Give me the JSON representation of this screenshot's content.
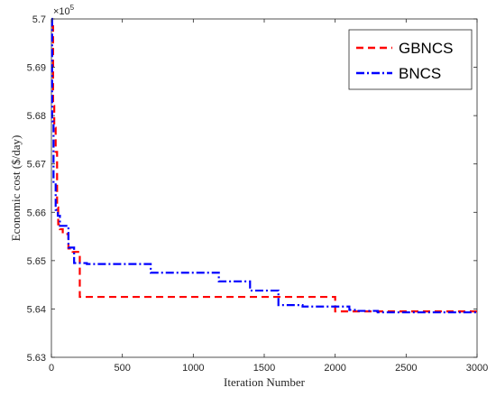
{
  "chart_data": {
    "type": "line",
    "xlabel": "Iteration Number",
    "ylabel": "Economic cost ($/day)",
    "y_multiplier": "×10",
    "y_multiplier_exp": "5",
    "xlim": [
      0,
      3000
    ],
    "ylim": [
      5.63,
      5.7
    ],
    "x_ticks": [
      0,
      500,
      1000,
      1500,
      2000,
      2500,
      3000
    ],
    "x_tick_labels": [
      "0",
      "500",
      "1000",
      "1500",
      "2000",
      "2500",
      "3000"
    ],
    "y_ticks": [
      5.63,
      5.64,
      5.65,
      5.66,
      5.67,
      5.68,
      5.69,
      5.7
    ],
    "y_tick_labels": [
      "5.63",
      "5.64",
      "5.65",
      "5.66",
      "5.67",
      "5.68",
      "5.69",
      "5.7"
    ],
    "grid": false,
    "legend_position": "top-right",
    "series": [
      {
        "name": "GBNCS",
        "color": "#ff0000",
        "style": "dashed",
        "x": [
          0,
          12,
          12,
          20,
          20,
          30,
          30,
          40,
          40,
          48,
          48,
          60,
          60,
          80,
          80,
          120,
          120,
          150,
          150,
          200,
          200,
          2000,
          2000,
          3000
        ],
        "y": [
          5.6985,
          5.6985,
          5.682,
          5.682,
          5.6775,
          5.6775,
          5.6725,
          5.6725,
          5.661,
          5.661,
          5.6575,
          5.6575,
          5.6565,
          5.6565,
          5.6555,
          5.6555,
          5.6525,
          5.6525,
          5.6518,
          5.6518,
          5.6425,
          5.6425,
          5.6395,
          5.6395
        ]
      },
      {
        "name": "BNCS",
        "color": "#0000ff",
        "style": "dash-dot",
        "x": [
          0,
          5,
          5,
          15,
          15,
          30,
          30,
          45,
          45,
          60,
          60,
          120,
          120,
          160,
          160,
          250,
          250,
          700,
          700,
          1180,
          1180,
          1400,
          1400,
          1600,
          1600,
          1770,
          1770,
          2100,
          2100,
          2150,
          2150,
          2300,
          2300,
          3000
        ],
        "y": [
          5.7,
          5.7,
          5.6788,
          5.6788,
          5.666,
          5.666,
          5.6605,
          5.6605,
          5.6593,
          5.6593,
          5.6572,
          5.6572,
          5.6527,
          5.6527,
          5.6495,
          5.6495,
          5.6493,
          5.6493,
          5.6475,
          5.6475,
          5.6457,
          5.6457,
          5.6438,
          5.6438,
          5.6408,
          5.6408,
          5.6405,
          5.6405,
          5.6398,
          5.6398,
          5.6396,
          5.6396,
          5.6393,
          5.6393
        ]
      }
    ]
  }
}
